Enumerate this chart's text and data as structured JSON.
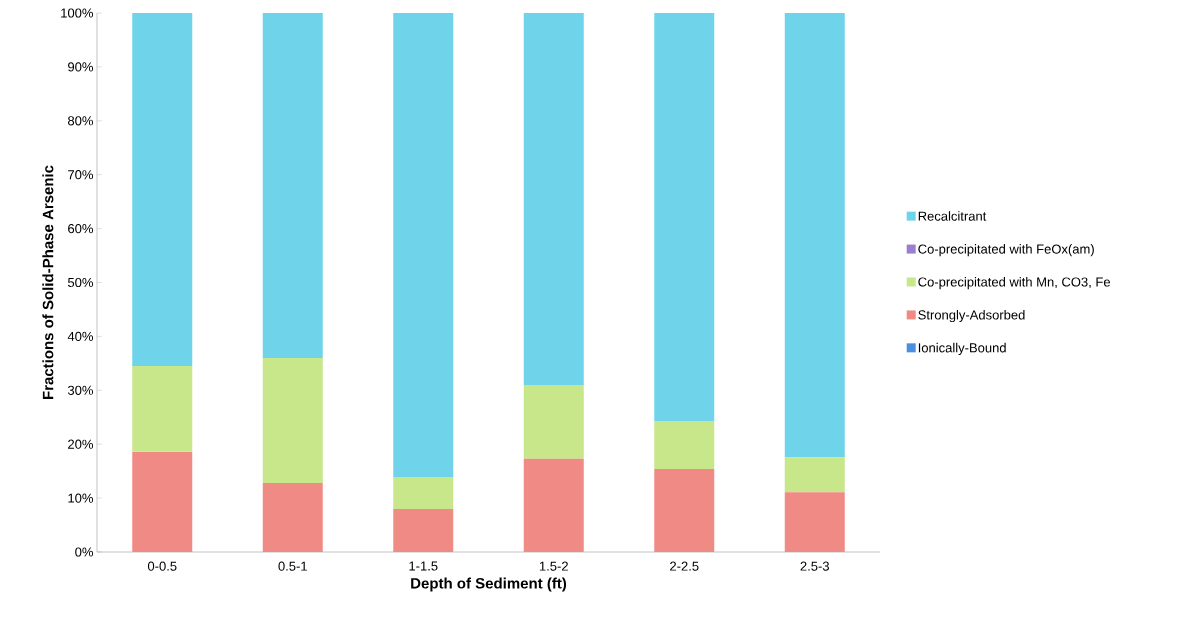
{
  "chart_data": {
    "type": "bar",
    "stacked": true,
    "xlabel": "Depth of Sediment (ft)",
    "ylabel": "Fractions of Solid-Phase Arsenic",
    "categories": [
      "0-0.5",
      "0.5-1",
      "1-1.5",
      "1.5-2",
      "2-2.5",
      "2.5-3"
    ],
    "series": [
      {
        "name": "Ionically-Bound",
        "color": "#4a8fe0",
        "values": [
          0,
          0,
          0,
          0,
          0,
          0
        ]
      },
      {
        "name": "Strongly-Adsorbed",
        "color": "#f08a84",
        "values": [
          18.6,
          12.8,
          8.0,
          17.3,
          15.4,
          11.1
        ]
      },
      {
        "name": "Co-precipitated with Mn, CO3, Fe",
        "color": "#c8e68a",
        "values": [
          15.9,
          23.2,
          5.9,
          13.7,
          8.9,
          6.5
        ]
      },
      {
        "name": "Co-precipitated with FeOx(am)",
        "color": "#9a7fd0",
        "values": [
          0,
          0,
          0,
          0,
          0,
          0
        ]
      },
      {
        "name": "Recalcitrant",
        "color": "#6fd4ea",
        "values": [
          65.5,
          64.0,
          86.1,
          69.0,
          75.7,
          82.4
        ]
      }
    ],
    "ylim": [
      0,
      100
    ],
    "yticks": [
      {
        "value": 0,
        "label": "0%"
      },
      {
        "value": 10,
        "label": "10%"
      },
      {
        "value": 20,
        "label": "20%"
      },
      {
        "value": 30,
        "label": "30%"
      },
      {
        "value": 40,
        "label": "40%"
      },
      {
        "value": 50,
        "label": "50%"
      },
      {
        "value": 60,
        "label": "60%"
      },
      {
        "value": 70,
        "label": "70%"
      },
      {
        "value": 80,
        "label": "80%"
      },
      {
        "value": 90,
        "label": "90%"
      },
      {
        "value": 100,
        "label": "100%"
      }
    ],
    "legend": "right",
    "grid": false
  }
}
